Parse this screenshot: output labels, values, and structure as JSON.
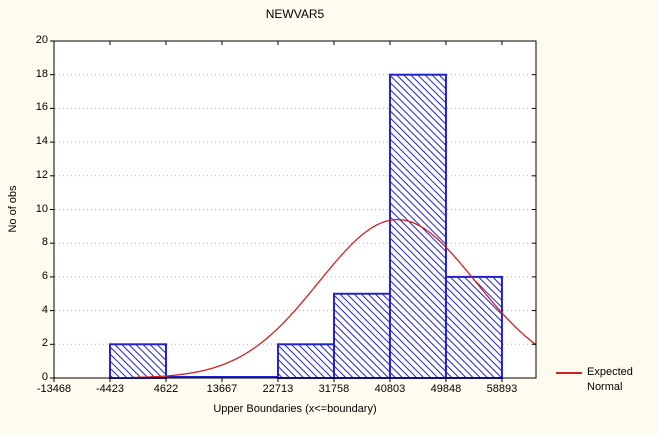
{
  "window": {
    "background": "#FFFBEE"
  },
  "chart_data": {
    "type": "bar",
    "subtype": "histogram-with-normal-curve",
    "title": "NEWVAR5",
    "xlabel": "Upper Boundaries (x<=boundary)",
    "ylabel": "No of obs",
    "x_ticks": [
      -13468,
      -4423,
      4622,
      13667,
      22713,
      31758,
      40803,
      49848,
      58893
    ],
    "x_tick_labels": [
      "-13468",
      "-4423",
      "4622",
      "13667",
      "22713",
      "31758",
      "40803",
      "49848",
      "58893"
    ],
    "y_ticks": [
      0,
      2,
      4,
      6,
      8,
      10,
      12,
      14,
      16,
      18,
      20
    ],
    "ylim": [
      0,
      20
    ],
    "xlim": [
      -13468,
      64395
    ],
    "bin_width": 9045,
    "bins": [
      {
        "from": -13468,
        "to": -4423,
        "count": 0
      },
      {
        "from": -4423,
        "to": 4622,
        "count": 2
      },
      {
        "from": 4622,
        "to": 13667,
        "count": 0
      },
      {
        "from": 13667,
        "to": 22713,
        "count": 0
      },
      {
        "from": 22713,
        "to": 31758,
        "count": 2
      },
      {
        "from": 31758,
        "to": 40803,
        "count": 5
      },
      {
        "from": 40803,
        "to": 49848,
        "count": 18
      },
      {
        "from": 49848,
        "to": 58893,
        "count": 6
      }
    ],
    "n_total": 33,
    "grid": "horizontal-dotted",
    "curve": {
      "name": "Expected Normal",
      "type": "normal",
      "mean": 42000,
      "sd": 12670,
      "peak": 9.4,
      "draw_from": -4423
    },
    "legend": {
      "position": "bottom-right",
      "lines": [
        "Expected",
        "Normal"
      ]
    },
    "colors": {
      "bar_outline": "#2222CC",
      "bar_hatch": "#2222CC",
      "bar_fill": "#FFFFFF",
      "curve": "#CC2222",
      "grid": "#B0B0B0",
      "frame": "#000000",
      "plot_bg": "#FFFFFF",
      "page_bg": "#FFFBEE",
      "text": "#000000"
    }
  }
}
